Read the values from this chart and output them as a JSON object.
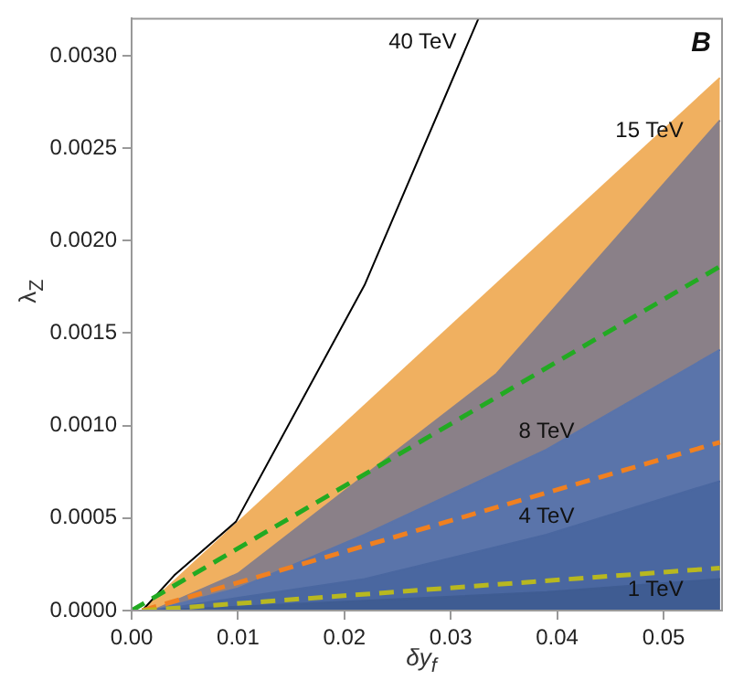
{
  "chart_data": {
    "type": "area",
    "xlabel": "δy$_{f}$",
    "ylabel": "λ$_{Z}$",
    "xlim": [
      0,
      0.0555
    ],
    "ylim": [
      0,
      0.0032
    ],
    "xticks": [
      {
        "value": 0,
        "label": "0.00"
      },
      {
        "value": 0.01,
        "label": "0.01"
      },
      {
        "value": 0.02,
        "label": "0.02"
      },
      {
        "value": 0.03,
        "label": "0.03"
      },
      {
        "value": 0.04,
        "label": "0.04"
      },
      {
        "value": 0.05,
        "label": "0.05"
      }
    ],
    "yticks": [
      {
        "value": 0,
        "label": "0.0000"
      },
      {
        "value": 0.0005,
        "label": "0.0005"
      },
      {
        "value": 0.001,
        "label": "0.0010"
      },
      {
        "value": 0.0015,
        "label": "0.0015"
      },
      {
        "value": 0.002,
        "label": "0.0020"
      },
      {
        "value": 0.0025,
        "label": "0.0025"
      },
      {
        "value": 0.003,
        "label": "0.0030"
      }
    ],
    "grid": false,
    "legend": false,
    "series": [
      {
        "color": "#f0b060",
        "x": [
          0.001,
          0.0553
        ],
        "values": [
          0,
          0.00288
        ]
      },
      {
        "color": "#8a8088",
        "x": [
          0.002,
          0.01,
          0.0219,
          0.0343,
          0.0553
        ],
        "values": [
          0,
          0.0002,
          0.00073,
          0.00128,
          0.00265
        ]
      },
      {
        "color": "#5a74aa",
        "x": [
          0.002,
          0.01,
          0.0219,
          0.039,
          0.0553
        ],
        "values": [
          0,
          0.00012,
          0.00041,
          0.00087,
          0.00141
        ]
      },
      {
        "color": "#4a67a0",
        "x": [
          0.002,
          0.0219,
          0.039,
          0.0553
        ],
        "values": [
          0,
          0.00017,
          0.00041,
          0.0007
        ]
      },
      {
        "color": "#3f5c92",
        "x": [
          0.002,
          0.039,
          0.0553
        ],
        "values": [
          0,
          0.0001,
          0.00017
        ]
      },
      {
        "type": "line",
        "color": "#000000",
        "x": [
          0.001,
          0.004,
          0.0098,
          0.0219,
          0.0326
        ],
        "values": [
          0,
          0.00019,
          0.00048,
          0.00176,
          0.0032
        ]
      },
      {
        "type": "line",
        "color": "#22aa22",
        "line_style": "dashed",
        "x": [
          0,
          0.0553
        ],
        "values": [
          0,
          0.00186
        ]
      },
      {
        "type": "line",
        "color": "#f08020",
        "line_style": "dashed",
        "x": [
          0.001,
          0.0553
        ],
        "values": [
          0,
          0.00091
        ]
      },
      {
        "type": "line",
        "color": "#b8b820",
        "line_style": "dashed",
        "x": [
          0.001,
          0.0553
        ],
        "values": [
          0,
          0.00023
        ]
      }
    ],
    "annotations": [
      {
        "text": "40 TeV",
        "x": 0.0326,
        "y": 0.0032
      },
      {
        "text": "15 TeV",
        "x": 0.0553,
        "y": 0.00265
      },
      {
        "text": "8 TeV",
        "x": 0.039,
        "y": 0.00087
      },
      {
        "text": "4 TeV",
        "x": 0.039,
        "y": 0.00041
      },
      {
        "text": "1 TeV",
        "x": 0.0553,
        "y": 0.00017
      },
      "B"
    ]
  }
}
